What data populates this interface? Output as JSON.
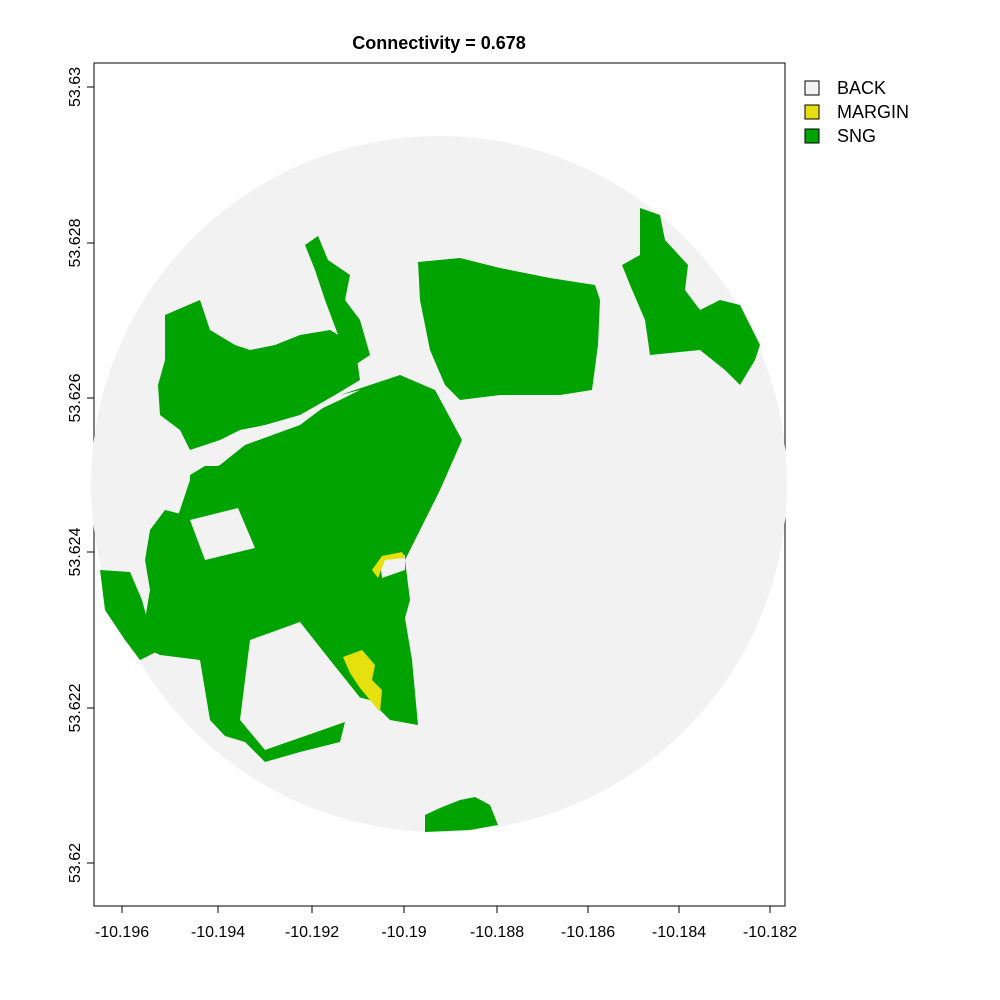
{
  "title": "Connectivity = 0.678",
  "colors": {
    "back": "#f2f2f2",
    "margin": "#e6e00f",
    "sng": "#00a300",
    "frame": "#000000"
  },
  "legend": [
    {
      "label": "BACK",
      "color": "#f2f2f2"
    },
    {
      "label": "MARGIN",
      "color": "#e6e00f"
    },
    {
      "label": "SNG",
      "color": "#00a300"
    }
  ],
  "x_ticks": [
    "-10.196",
    "-10.194",
    "-10.192",
    "-10.19",
    "-10.188",
    "-10.186",
    "-10.184",
    "-10.182"
  ],
  "y_ticks": [
    "53.63",
    "53.628",
    "53.626",
    "53.624",
    "53.622",
    "53.62"
  ]
}
